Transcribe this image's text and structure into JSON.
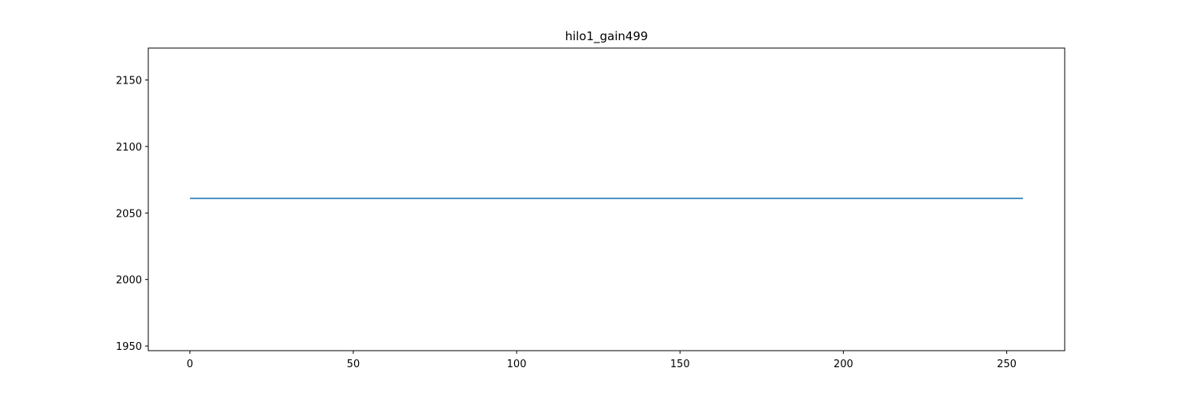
{
  "chart_data": {
    "type": "line",
    "title": "hilo1_gain499",
    "xlabel": "",
    "ylabel": "",
    "xlim": [
      -12.75,
      267.75
    ],
    "ylim": [
      1946.5,
      2174.0
    ],
    "x_ticks": [
      0,
      50,
      100,
      150,
      200,
      250
    ],
    "y_ticks": [
      1950,
      2000,
      2050,
      2100,
      2150
    ],
    "grid": false,
    "series": [
      {
        "color": "#1f77b4",
        "x": [
          0,
          255
        ],
        "y": [
          2061,
          2061
        ]
      }
    ]
  }
}
